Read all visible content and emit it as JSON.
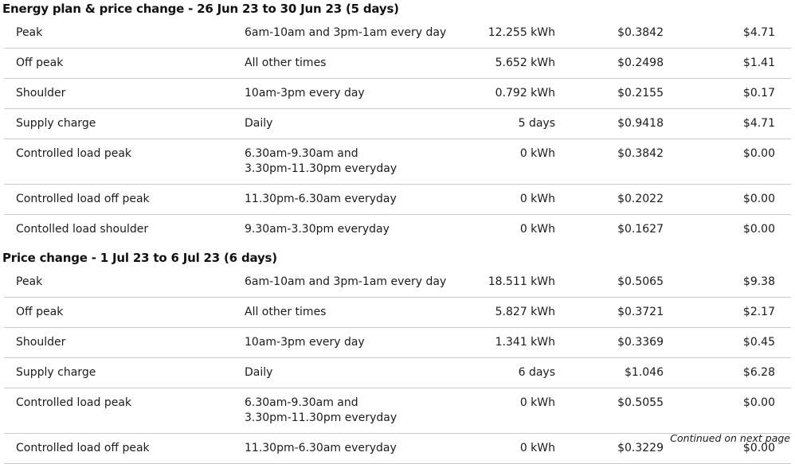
{
  "page": {
    "background": "#ffffff",
    "text_color": "#1b1b1b",
    "border_color": "#cacaca"
  },
  "sections": [
    {
      "title": "Energy plan & price change - 26 Jun 23 to 30 Jun 23 (5 days)",
      "rows": [
        {
          "name": "Peak",
          "period": "6am-10am and 3pm-1am every day",
          "quantity": "12.255 kWh",
          "rate": "$0.3842",
          "amount": "$4.71"
        },
        {
          "name": "Off peak",
          "period": "All other times",
          "quantity": "5.652 kWh",
          "rate": "$0.2498",
          "amount": "$1.41"
        },
        {
          "name": "Shoulder",
          "period": "10am-3pm every day",
          "quantity": "0.792 kWh",
          "rate": "$0.2155",
          "amount": "$0.17"
        },
        {
          "name": "Supply charge",
          "period": "Daily",
          "quantity": "5 days",
          "rate": "$0.9418",
          "amount": "$4.71"
        },
        {
          "name": "Controlled load peak",
          "period": "6.30am-9.30am and\n3.30pm-11.30pm everyday",
          "quantity": "0 kWh",
          "rate": "$0.3842",
          "amount": "$0.00"
        },
        {
          "name": "Controlled load off peak",
          "period": "11.30pm-6.30am everyday",
          "quantity": "0 kWh",
          "rate": "$0.2022",
          "amount": "$0.00"
        },
        {
          "name": "Contolled load shoulder",
          "period": "9.30am-3.30pm everyday",
          "quantity": "0 kWh",
          "rate": "$0.1627",
          "amount": "$0.00"
        }
      ]
    },
    {
      "title": "Price change - 1 Jul 23 to 6 Jul 23 (6 days)",
      "rows": [
        {
          "name": "Peak",
          "period": "6am-10am and 3pm-1am every day",
          "quantity": "18.511 kWh",
          "rate": "$0.5065",
          "amount": "$9.38"
        },
        {
          "name": "Off peak",
          "period": "All other times",
          "quantity": "5.827 kWh",
          "rate": "$0.3721",
          "amount": "$2.17"
        },
        {
          "name": "Shoulder",
          "period": "10am-3pm every day",
          "quantity": "1.341 kWh",
          "rate": "$0.3369",
          "amount": "$0.45"
        },
        {
          "name": "Supply charge",
          "period": "Daily",
          "quantity": "6 days",
          "rate": "$1.046",
          "amount": "$6.28"
        },
        {
          "name": "Controlled load peak",
          "period": "6.30am-9.30am and\n3.30pm-11.30pm everyday",
          "quantity": "0 kWh",
          "rate": "$0.5055",
          "amount": "$0.00"
        },
        {
          "name": "Controlled load off peak",
          "period": "11.30pm-6.30am everyday",
          "quantity": "0 kWh",
          "rate": "$0.3229",
          "amount": "$0.00"
        }
      ]
    }
  ],
  "footer": {
    "continued_note": "Continued on next page"
  }
}
